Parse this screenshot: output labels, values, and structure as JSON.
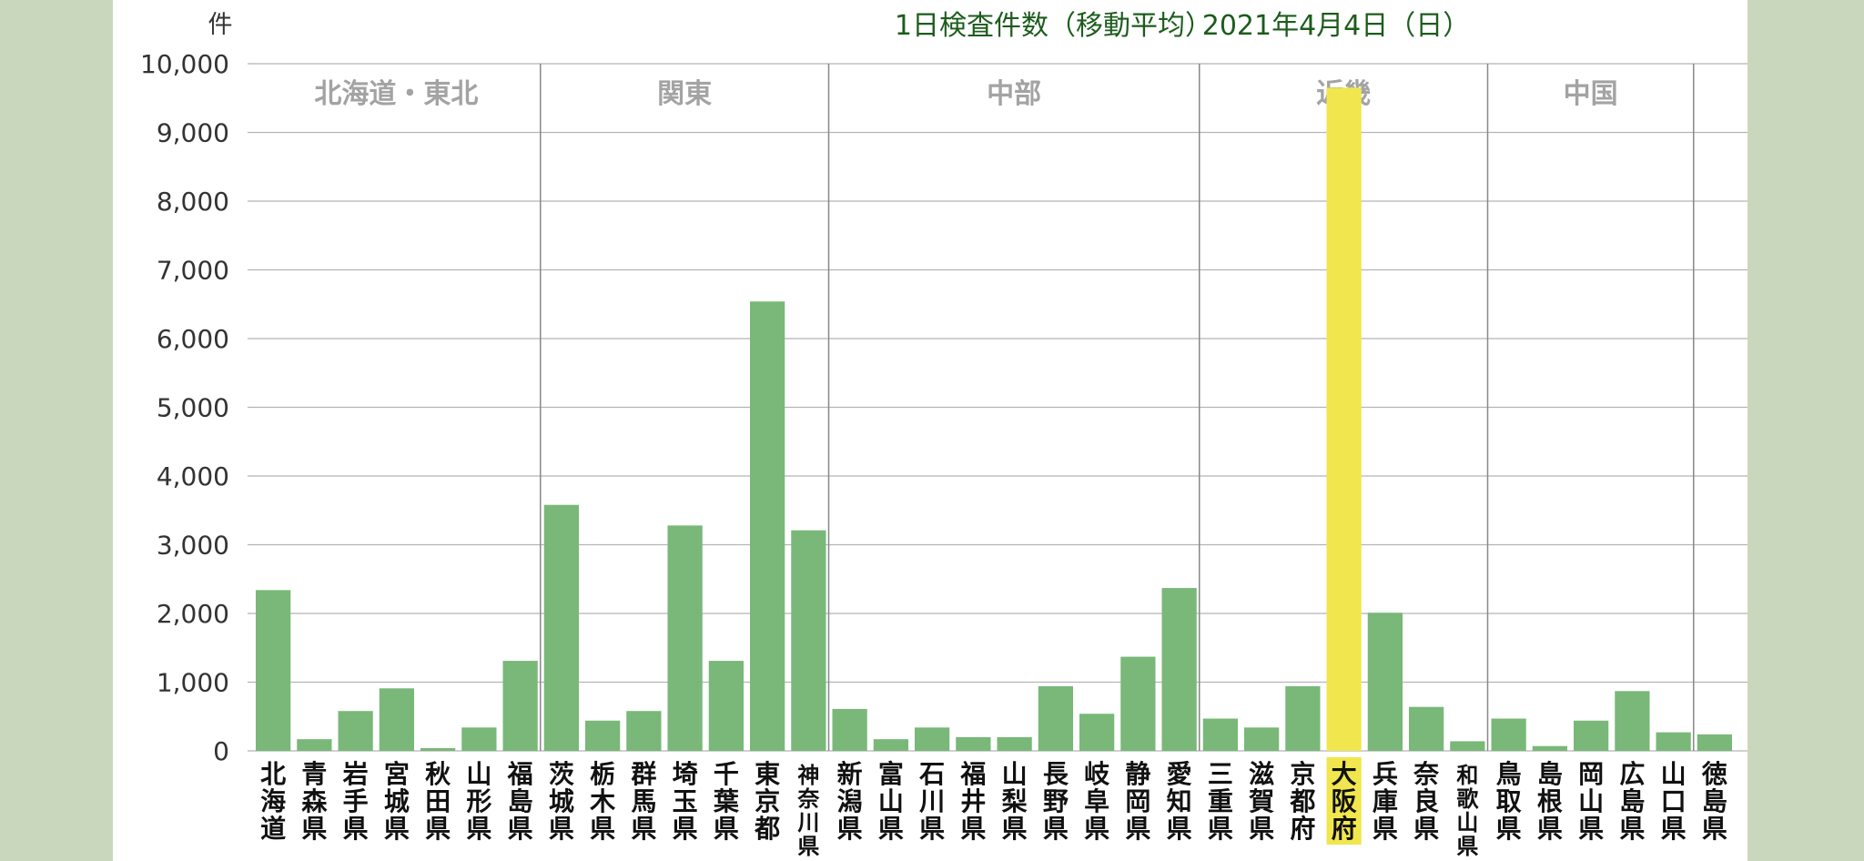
{
  "chart_data": {
    "type": "bar",
    "title": "1日検査件数（移動平均）",
    "date": "2021年4月4日（日）",
    "ylabel": "件",
    "ylim": [
      0,
      10000
    ],
    "yticks": [
      "0",
      "1,000",
      "2,000",
      "3,000",
      "4,000",
      "5,000",
      "6,000",
      "7,000",
      "8,000",
      "9,000",
      "10,000"
    ],
    "grid": true,
    "colors": {
      "bar": "#79b878",
      "highlight": "#f1e64e",
      "grid": "#b5b5b5",
      "title": "#1d5c1d",
      "region": "#a3a3a3"
    },
    "highlight_category": "大阪府",
    "regions": [
      {
        "name": "北海道・東北",
        "count": 7
      },
      {
        "name": "関東",
        "count": 7
      },
      {
        "name": "中部",
        "count": 9
      },
      {
        "name": "近畿",
        "count": 7
      },
      {
        "name": "中国",
        "count": 5
      }
    ],
    "categories": [
      "北海道",
      "青森県",
      "岩手県",
      "宮城県",
      "秋田県",
      "山形県",
      "福島県",
      "茨城県",
      "栃木県",
      "群馬県",
      "埼玉県",
      "千葉県",
      "東京都",
      "神奈川県",
      "新潟県",
      "富山県",
      "石川県",
      "福井県",
      "山梨県",
      "長野県",
      "岐阜県",
      "静岡県",
      "愛知県",
      "三重県",
      "滋賀県",
      "京都府",
      "大阪府",
      "兵庫県",
      "奈良県",
      "和歌山県",
      "鳥取県",
      "島根県",
      "岡山県",
      "広島県",
      "山口県",
      "徳島県"
    ],
    "values": [
      2340,
      170,
      580,
      910,
      40,
      340,
      1310,
      3580,
      440,
      580,
      3280,
      1310,
      6540,
      3210,
      610,
      170,
      340,
      200,
      200,
      940,
      540,
      1370,
      2370,
      470,
      340,
      940,
      9650,
      2010,
      640,
      140,
      470,
      70,
      440,
      870,
      270,
      240
    ]
  }
}
